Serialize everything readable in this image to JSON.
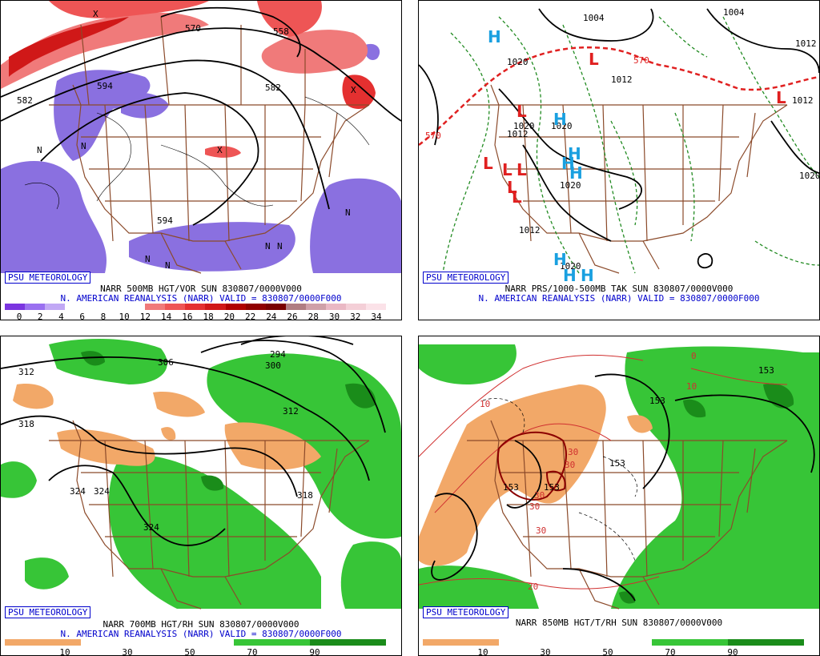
{
  "branding": "PSU METEOROLOGY",
  "panels": {
    "p500": {
      "caption": "NARR 500MB HGT/VOR SUN 830807/0000V000",
      "caption2": "N. AMERICAN REANALYSIS (NARR) VALID = 830807/0000F000",
      "contour_labels": [
        "582",
        "594",
        "582",
        "594",
        "570",
        "558"
      ],
      "vor_symbol": "N",
      "max_symbol": "X",
      "colorbar": {
        "colors": [
          "#7b35e0",
          "#9a70f0",
          "#c1a8f5",
          "#ffffff",
          "#ffffff",
          "#ffffff",
          "#ffffff",
          "#f07a7a",
          "#ee5555",
          "#e43030",
          "#d01818",
          "#b00000",
          "#900000",
          "#7a0000",
          "#b07d82",
          "#cfa0a8",
          "#eab8c4",
          "#f4cfd7",
          "#fbe2e8"
        ],
        "tick_labels": [
          "0",
          "2",
          "4",
          "6",
          "8",
          "10",
          "12",
          "14",
          "16",
          "18",
          "20",
          "22",
          "24",
          "26",
          "28",
          "30",
          "32",
          "34"
        ]
      }
    },
    "pslp": {
      "caption": "NARR PRS/1000-500MB TAK SUN 830807/0000V000",
      "caption2": "N. AMERICAN REANALYSIS (NARR) VALID = 830807/0000F000",
      "isobar_labels": [
        "1004",
        "1004",
        "1020",
        "1012",
        "1012",
        "1020",
        "1012",
        "1020",
        "1020",
        "1012",
        "1020",
        "1012",
        "1020"
      ],
      "thickness_labels": [
        "570",
        "570"
      ],
      "low_symbol": "L",
      "high_symbol": "H"
    },
    "p700": {
      "caption": "NARR 700MB HGT/RH SUN 830807/0000V000",
      "caption2": "N. AMERICAN REANALYSIS (NARR) VALID = 830807/0000F000",
      "contour_labels": [
        "312",
        "306",
        "294",
        "300",
        "318",
        "312",
        "324",
        "324",
        "318",
        "324"
      ],
      "colorbar": {
        "colors": [
          "#f2a868",
          "#f2a868",
          "#ffffff",
          "#ffffff",
          "#ffffff",
          "#ffffff",
          "#37c537",
          "#37c537",
          "#1a8c1a",
          "#1a8c1a"
        ],
        "tick_labels": [
          "10",
          "30",
          "50",
          "70",
          "90"
        ]
      }
    },
    "p850": {
      "caption": "NARR 850MB HGT/T/RH SUN 830807/0000V000",
      "contour_labels": [
        "153",
        "153",
        "153",
        "153",
        "153"
      ],
      "temp_labels": [
        "10",
        "10",
        "30",
        "30",
        "30",
        "30",
        "30",
        "20",
        "0"
      ],
      "colorbar": {
        "colors": [
          "#f2a868",
          "#f2a868",
          "#ffffff",
          "#ffffff",
          "#ffffff",
          "#ffffff",
          "#37c537",
          "#37c537",
          "#1a8c1a",
          "#1a8c1a"
        ],
        "tick_labels": [
          "10",
          "30",
          "50",
          "70",
          "90"
        ]
      }
    }
  },
  "colors": {
    "map_borders": "#8b4a2a",
    "heights": "#000000",
    "isobars": "#000000",
    "thickness_dashed": "#228b22",
    "thickness_570": "#e02020",
    "low_marker": "#e02020",
    "high_marker": "#1aa0e0",
    "vort_positive": "#ee5555",
    "vort_negative": "#8a70e0",
    "rh_moist": "#37c537",
    "rh_moist_dark": "#1a8c1a",
    "rh_dry": "#f2a868",
    "temp_850": "#d03030"
  }
}
